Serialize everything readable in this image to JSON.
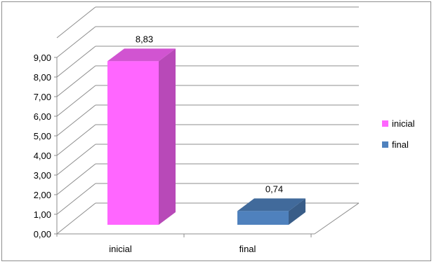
{
  "chart_data": {
    "type": "bar",
    "style": "3d-column",
    "categories": [
      "inicial",
      "final"
    ],
    "series": [
      {
        "name": "inicial",
        "values": [
          8.83,
          null
        ],
        "color": "#ff66ff"
      },
      {
        "name": "final",
        "values": [
          null,
          0.74
        ],
        "color": "#4f81bd"
      }
    ],
    "data_labels": [
      "8,83",
      "0,74"
    ],
    "ylim": [
      0,
      9
    ],
    "yticks": [
      "0,00",
      "1,00",
      "2,00",
      "3,00",
      "4,00",
      "5,00",
      "6,00",
      "7,00",
      "8,00",
      "9,00"
    ],
    "grid": true,
    "legend_position": "right",
    "legend": [
      "inicial",
      "final"
    ]
  }
}
